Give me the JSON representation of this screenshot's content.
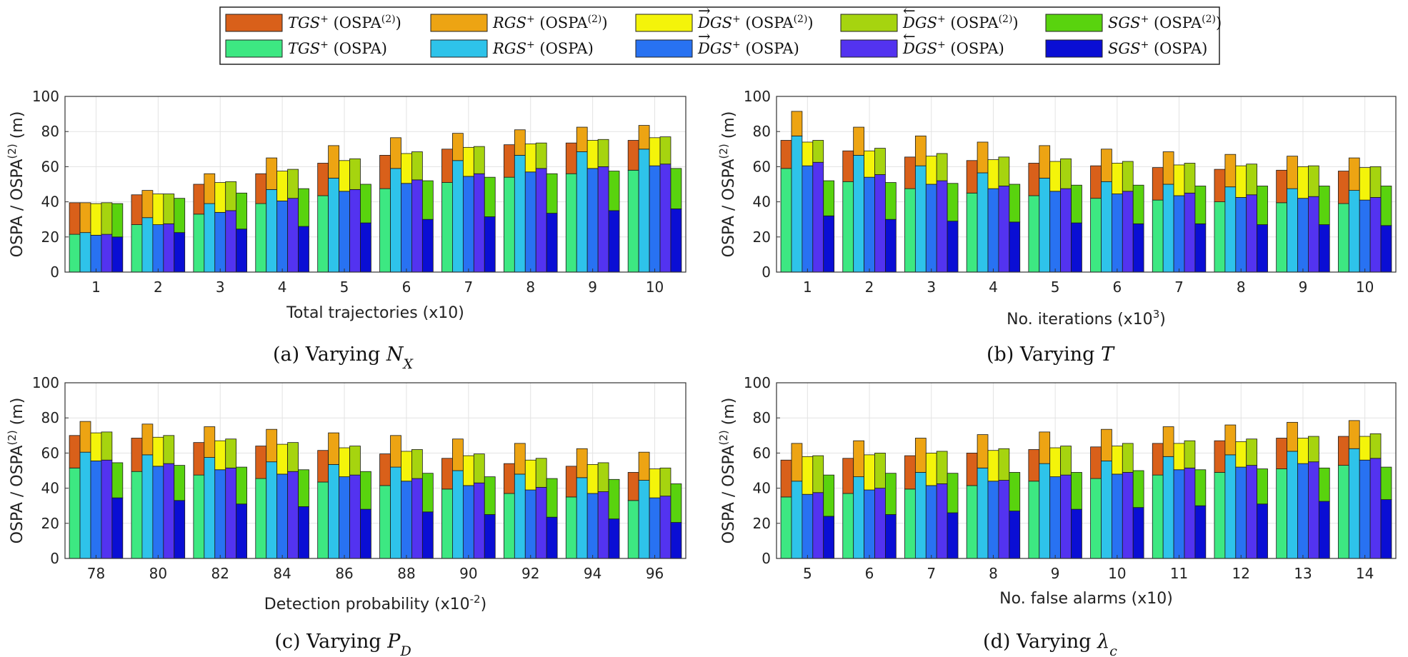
{
  "legend": {
    "items": [
      {
        "id": "tgs2",
        "method": "TGS",
        "sup": "+",
        "metric": "OSPA",
        "metric_sup": "(2)",
        "color": "#d9601a"
      },
      {
        "id": "rgs2",
        "method": "RGS",
        "sup": "+",
        "metric": "OSPA",
        "metric_sup": "(2)",
        "color": "#eda413"
      },
      {
        "id": "fdgs2",
        "method": "DGS",
        "arrow": "→",
        "sup": "+",
        "metric": "OSPA",
        "metric_sup": "(2)",
        "color": "#f4f40a"
      },
      {
        "id": "bdgs2",
        "method": "DGS",
        "arrow": "←",
        "sup": "+",
        "metric": "OSPA",
        "metric_sup": "(2)",
        "color": "#a6d40f"
      },
      {
        "id": "sgs2",
        "method": "SGS",
        "sup": "+",
        "metric": "OSPA",
        "metric_sup": "(2)",
        "color": "#59d30e"
      },
      {
        "id": "tgs",
        "method": "TGS",
        "sup": "+",
        "metric": "OSPA",
        "metric_sup": "",
        "color": "#3de882"
      },
      {
        "id": "rgs",
        "method": "RGS",
        "sup": "+",
        "metric": "OSPA",
        "metric_sup": "",
        "color": "#2ec3ea"
      },
      {
        "id": "fdgs",
        "method": "DGS",
        "arrow": "→",
        "sup": "+",
        "metric": "OSPA",
        "metric_sup": "",
        "color": "#2872f2"
      },
      {
        "id": "bdgs",
        "method": "DGS",
        "arrow": "←",
        "sup": "+",
        "metric": "OSPA",
        "metric_sup": "",
        "color": "#5333f0"
      },
      {
        "id": "sgs",
        "method": "SGS",
        "sup": "+",
        "metric": "OSPA",
        "metric_sup": "",
        "color": "#0a0ed4"
      }
    ]
  },
  "chart_data": [
    {
      "type": "bar",
      "panel": "a",
      "caption_prefix": "(a) Varying ",
      "caption_var": "N",
      "caption_sub": "X",
      "xlabel": "Total trajectories (x10)",
      "xlabel_sup": "",
      "xlabel_suffix": "",
      "ylabel": "OSPA / OSPA",
      "ylabel_sup": "(2)",
      "ylabel_suffix": " (m)",
      "ylim": [
        0,
        100
      ],
      "yticks": [
        0,
        20,
        40,
        60,
        80,
        100
      ],
      "grid": true,
      "categories": [
        "1",
        "2",
        "3",
        "4",
        "5",
        "6",
        "7",
        "8",
        "9",
        "10"
      ],
      "series": [
        {
          "name": "TGS+",
          "ospa": [
            21.5,
            27,
            33,
            39,
            43.5,
            47.5,
            51,
            54,
            56,
            58
          ],
          "ospa2": [
            39.5,
            44,
            50,
            56,
            62,
            66.5,
            70,
            72.5,
            73.5,
            75
          ]
        },
        {
          "name": "RGS+",
          "ospa": [
            22.5,
            31,
            39,
            47,
            53.5,
            59,
            63.5,
            66.5,
            68.5,
            70
          ],
          "ospa2": [
            39.5,
            46.5,
            56,
            65,
            72,
            76.5,
            79,
            81,
            82.5,
            83.5
          ]
        },
        {
          "name": "DGS+ (forward)",
          "ospa": [
            21,
            27,
            34,
            40.5,
            46,
            50.5,
            54.5,
            57,
            59,
            60.5
          ],
          "ospa2": [
            39,
            44.5,
            51,
            57.5,
            63.5,
            67.5,
            71,
            73,
            75,
            76.5
          ]
        },
        {
          "name": "DGS+ (backward)",
          "ospa": [
            21.5,
            27.5,
            35,
            42,
            47,
            52.5,
            56,
            59,
            60,
            61.5
          ],
          "ospa2": [
            39.5,
            44.5,
            51.5,
            58.5,
            64.5,
            68.5,
            71.5,
            73.5,
            75.5,
            77
          ]
        },
        {
          "name": "SGS+",
          "ospa": [
            20,
            22.5,
            24.5,
            26,
            28,
            30,
            31.5,
            33.5,
            35,
            36
          ],
          "ospa2": [
            39,
            42,
            45,
            47.5,
            50,
            52,
            54,
            56,
            57.5,
            59
          ]
        }
      ]
    },
    {
      "type": "bar",
      "panel": "b",
      "caption_prefix": "(b) Varying ",
      "caption_var": "T",
      "caption_sub": "",
      "xlabel": "No. iterations (x10",
      "xlabel_sup": "3",
      "xlabel_suffix": ")",
      "ylabel": "OSPA / OSPA",
      "ylabel_sup": "(2)",
      "ylabel_suffix": " (m)",
      "ylim": [
        0,
        100
      ],
      "yticks": [
        0,
        20,
        40,
        60,
        80,
        100
      ],
      "grid": true,
      "categories": [
        "1",
        "2",
        "3",
        "4",
        "5",
        "6",
        "7",
        "8",
        "9",
        "10"
      ],
      "series": [
        {
          "name": "TGS+",
          "ospa": [
            59,
            51.5,
            47.5,
            45,
            43.5,
            42,
            41,
            40,
            39.5,
            39
          ],
          "ospa2": [
            75,
            69,
            65.5,
            63.5,
            62,
            60.5,
            59.5,
            58.5,
            58,
            57.5
          ]
        },
        {
          "name": "RGS+",
          "ospa": [
            77.5,
            66.5,
            60.5,
            56.5,
            53.5,
            51.5,
            50,
            48.5,
            47.5,
            46.5
          ],
          "ospa2": [
            91.5,
            82.5,
            77.5,
            74,
            72,
            70,
            68.5,
            67,
            66,
            65
          ]
        },
        {
          "name": "DGS+ (forward)",
          "ospa": [
            60.5,
            54,
            50,
            47.5,
            46,
            44.5,
            43.5,
            42.5,
            42,
            41
          ],
          "ospa2": [
            74,
            69,
            66,
            64,
            63,
            62,
            61,
            60.5,
            60,
            59.5
          ]
        },
        {
          "name": "DGS+ (backward)",
          "ospa": [
            62.5,
            55.5,
            52,
            49,
            47.5,
            46,
            45,
            44,
            43,
            42.5
          ],
          "ospa2": [
            75,
            70.5,
            67.5,
            65.5,
            64.5,
            63,
            62,
            61.5,
            60.5,
            60
          ]
        },
        {
          "name": "SGS+",
          "ospa": [
            32,
            30,
            29,
            28.5,
            28,
            27.5,
            27.5,
            27,
            27,
            26.5
          ],
          "ospa2": [
            52,
            51,
            50.5,
            50,
            49.5,
            49.5,
            49,
            49,
            49,
            49
          ]
        }
      ]
    },
    {
      "type": "bar",
      "panel": "c",
      "caption_prefix": "(c) Varying ",
      "caption_var": "P",
      "caption_sub": "D",
      "xlabel": "Detection probability (x10",
      "xlabel_sup": "-2",
      "xlabel_suffix": ")",
      "ylabel": "OSPA / OSPA",
      "ylabel_sup": "(2)",
      "ylabel_suffix": " (m)",
      "ylim": [
        0,
        100
      ],
      "yticks": [
        0,
        20,
        40,
        60,
        80,
        100
      ],
      "grid": true,
      "categories": [
        "78",
        "80",
        "82",
        "84",
        "86",
        "88",
        "90",
        "92",
        "94",
        "96"
      ],
      "series": [
        {
          "name": "TGS+",
          "ospa": [
            51.5,
            49.5,
            47.5,
            45.5,
            43.5,
            41.5,
            39.5,
            37,
            35,
            33
          ],
          "ospa2": [
            70,
            68.5,
            66,
            64,
            61.5,
            59.5,
            57,
            54,
            52.5,
            49
          ]
        },
        {
          "name": "RGS+",
          "ospa": [
            60.5,
            59,
            57.5,
            55,
            53.5,
            52,
            50,
            48,
            46,
            44.5
          ],
          "ospa2": [
            78,
            76.5,
            75,
            73.5,
            71.5,
            70,
            68,
            65.5,
            62.5,
            60.5
          ]
        },
        {
          "name": "DGS+ (forward)",
          "ospa": [
            55.5,
            52.5,
            50.5,
            48,
            46.5,
            44,
            41.5,
            39,
            37,
            34.5
          ],
          "ospa2": [
            71.5,
            69,
            67,
            65,
            63,
            61,
            58.5,
            56,
            53.5,
            51
          ]
        },
        {
          "name": "DGS+ (backward)",
          "ospa": [
            56,
            54,
            51.5,
            49.5,
            47.5,
            45.5,
            43,
            40.5,
            38,
            35.5
          ],
          "ospa2": [
            72,
            70,
            68,
            66,
            64,
            62,
            59.5,
            57,
            54.5,
            51.5
          ]
        },
        {
          "name": "SGS+",
          "ospa": [
            34.5,
            33,
            31,
            29.5,
            28,
            26.5,
            25,
            23.5,
            22.5,
            20.5
          ],
          "ospa2": [
            54.5,
            53,
            52,
            50.5,
            49.5,
            48.5,
            46.5,
            45.5,
            45,
            42.5
          ]
        }
      ]
    },
    {
      "type": "bar",
      "panel": "d",
      "caption_prefix": "(d) Varying ",
      "caption_var": "λ",
      "caption_sub": "c",
      "xlabel": "No. false alarms (x10)",
      "xlabel_sup": "",
      "xlabel_suffix": "",
      "ylabel": "OSPA / OSPA",
      "ylabel_sup": "(2)",
      "ylabel_suffix": " (m)",
      "ylim": [
        0,
        100
      ],
      "yticks": [
        0,
        20,
        40,
        60,
        80,
        100
      ],
      "grid": true,
      "categories": [
        "5",
        "6",
        "7",
        "8",
        "9",
        "10",
        "11",
        "12",
        "13",
        "14"
      ],
      "series": [
        {
          "name": "TGS+",
          "ospa": [
            35,
            37,
            39.5,
            41.5,
            44,
            45.5,
            47.5,
            49,
            51,
            53
          ],
          "ospa2": [
            56,
            57,
            58.5,
            60,
            62,
            63.5,
            65.5,
            67,
            68.5,
            69.5
          ]
        },
        {
          "name": "RGS+",
          "ospa": [
            44,
            46.5,
            49,
            51.5,
            54,
            55.5,
            58,
            59,
            61,
            62.5
          ],
          "ospa2": [
            65.5,
            67,
            68.5,
            70.5,
            72,
            73.5,
            75,
            76,
            77.5,
            78.5
          ]
        },
        {
          "name": "DGS+ (forward)",
          "ospa": [
            36.5,
            39,
            41.5,
            44,
            46.5,
            48,
            50.5,
            52,
            54,
            56
          ],
          "ospa2": [
            58,
            59,
            60,
            61.5,
            63,
            64,
            65.5,
            66.5,
            68.5,
            69.5
          ]
        },
        {
          "name": "DGS+ (backward)",
          "ospa": [
            37.5,
            40,
            42.5,
            44.5,
            47.5,
            49,
            51.5,
            53,
            55,
            57
          ],
          "ospa2": [
            58.5,
            60,
            61,
            62.5,
            64,
            65.5,
            67,
            68,
            69.5,
            71
          ]
        },
        {
          "name": "SGS+",
          "ospa": [
            24,
            25,
            26,
            27,
            28,
            29,
            30,
            31,
            32.5,
            33.5
          ],
          "ospa2": [
            47.5,
            48.5,
            48.5,
            49,
            49,
            50,
            50.5,
            51,
            51.5,
            52
          ]
        }
      ]
    }
  ]
}
